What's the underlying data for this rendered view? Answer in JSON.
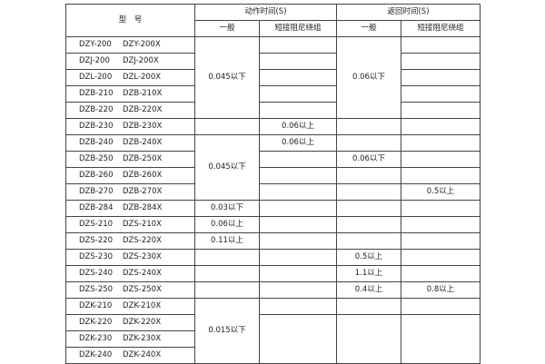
{
  "header": {
    "model_label": "型　号",
    "action_time": "动作时间(S)",
    "return_time": "返回时间(S)",
    "general": "一般",
    "short_damping": "短接阻尼绕组"
  },
  "rows": [
    {
      "model": [
        "DZY-200",
        "DZY-200X"
      ],
      "cells": [
        {
          "text": "0.045以下",
          "rowspan": 5
        },
        {
          "text": ""
        },
        {
          "text": "0.06以下",
          "rowspan": 5
        },
        {
          "text": ""
        }
      ]
    },
    {
      "model": [
        "DZJ-200",
        "DZJ-200X"
      ],
      "cells": [
        null,
        {
          "text": ""
        },
        null,
        {
          "text": ""
        }
      ]
    },
    {
      "model": [
        "DZL-200",
        "DZL-200X"
      ],
      "cells": [
        null,
        {
          "text": ""
        },
        null,
        {
          "text": ""
        }
      ]
    },
    {
      "model": [
        "DZB-210",
        "DZB-210X"
      ],
      "cells": [
        null,
        {
          "text": ""
        },
        null,
        {
          "text": ""
        }
      ]
    },
    {
      "model": [
        "DZB-220",
        "DZB-220X"
      ],
      "cells": [
        null,
        {
          "text": ""
        },
        null,
        {
          "text": ""
        }
      ]
    },
    {
      "model": [
        "DZB-230",
        "DZB-230X"
      ],
      "cells": [
        {
          "text": ""
        },
        {
          "text": "0.06以上"
        },
        {
          "text": ""
        },
        {
          "text": ""
        }
      ]
    },
    {
      "model": [
        "DZB-240",
        "DZB-240X"
      ],
      "cells": [
        {
          "text": "0.045以下",
          "rowspan": 4
        },
        {
          "text": "0.06以上"
        },
        {
          "text": ""
        },
        {
          "text": ""
        }
      ]
    },
    {
      "model": [
        "DZB-250",
        "DZB-250X"
      ],
      "cells": [
        null,
        {
          "text": ""
        },
        {
          "text": "0.06以下"
        },
        {
          "text": ""
        }
      ]
    },
    {
      "model": [
        "DZB-260",
        "DZB-260X"
      ],
      "cells": [
        null,
        {
          "text": ""
        },
        {
          "text": ""
        },
        {
          "text": ""
        }
      ]
    },
    {
      "model": [
        "DZB-270",
        "DZB-270X"
      ],
      "cells": [
        null,
        {
          "text": ""
        },
        {
          "text": ""
        },
        {
          "text": "0.5以上"
        }
      ]
    },
    {
      "model": [
        "DZB-284",
        "DZB-284X"
      ],
      "cells": [
        {
          "text": "0.03以下"
        },
        {
          "text": ""
        },
        {
          "text": ""
        },
        {
          "text": ""
        }
      ]
    },
    {
      "model": [
        "DZS-210",
        "DZS-210X"
      ],
      "cells": [
        {
          "text": "0.06以上"
        },
        {
          "text": ""
        },
        {
          "text": ""
        },
        {
          "text": ""
        }
      ]
    },
    {
      "model": [
        "DZS-220",
        "DZS-220X"
      ],
      "cells": [
        {
          "text": "0.11以上"
        },
        {
          "text": ""
        },
        {
          "text": ""
        },
        {
          "text": ""
        }
      ]
    },
    {
      "model": [
        "DZS-230",
        "DZS-230X"
      ],
      "cells": [
        {
          "text": ""
        },
        {
          "text": ""
        },
        {
          "text": "0.5以上"
        },
        {
          "text": ""
        }
      ]
    },
    {
      "model": [
        "DZS-240",
        "DZS-240X"
      ],
      "cells": [
        {
          "text": ""
        },
        {
          "text": ""
        },
        {
          "text": "1.1以上"
        },
        {
          "text": ""
        }
      ]
    },
    {
      "model": [
        "DZS-250",
        "DZS-250X"
      ],
      "cells": [
        {
          "text": ""
        },
        {
          "text": ""
        },
        {
          "text": "0.4以上"
        },
        {
          "text": "0.8以上"
        }
      ]
    },
    {
      "model": [
        "DZK-210",
        "DZK-210X"
      ],
      "cells": [
        {
          "text": "0.015以下",
          "rowspan": 4
        },
        {
          "text": ""
        },
        {
          "text": ""
        },
        {
          "text": ""
        }
      ]
    },
    {
      "model": [
        "DZK-220",
        "DZK-220X"
      ],
      "cells": [
        null,
        {
          "text": "",
          "rowspan": 3
        },
        {
          "text": "",
          "rowspan": 3
        },
        {
          "text": "",
          "rowspan": 3
        }
      ]
    },
    {
      "model": [
        "DZK-230",
        "DZK-230X"
      ],
      "cells": [
        null,
        null,
        null,
        null
      ]
    },
    {
      "model": [
        "DZK-240",
        "DZK-240X"
      ],
      "cells": [
        null,
        null,
        null,
        null
      ]
    }
  ]
}
